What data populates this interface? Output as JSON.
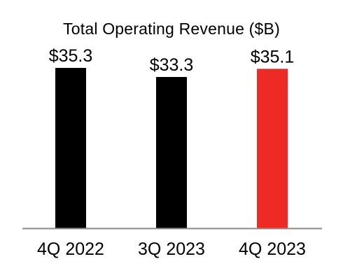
{
  "chart_data": {
    "type": "bar",
    "title": "Total Operating Revenue ($B)",
    "categories": [
      "4Q 2022",
      "3Q 2023",
      "4Q 2023"
    ],
    "values": [
      35.3,
      33.3,
      35.1
    ],
    "value_labels": [
      "$35.3",
      "$33.3",
      "$35.1"
    ],
    "colors": [
      "#000000",
      "#000000",
      "#ee2a24"
    ],
    "xlabel": "",
    "ylabel": "",
    "ylim": [
      0,
      37
    ],
    "grid": false,
    "legend": "none",
    "axis_color": "#8a8a8a"
  }
}
